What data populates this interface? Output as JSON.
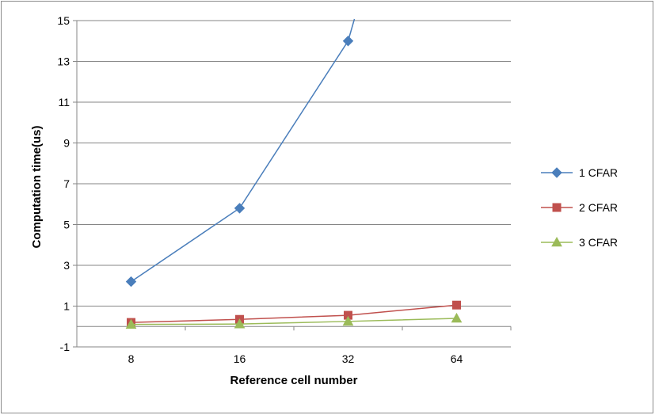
{
  "chart_data": {
    "type": "line",
    "categories": [
      "8",
      "16",
      "32",
      "64"
    ],
    "series": [
      {
        "name": "1 CFAR",
        "values": [
          2.2,
          5.8,
          14.0,
          null
        ],
        "color": "#4a7ebb",
        "marker": "diamond"
      },
      {
        "name": "2 CFAR",
        "values": [
          0.2,
          0.35,
          0.55,
          1.05
        ],
        "color": "#c0504d",
        "marker": "square"
      },
      {
        "name": "3 CFAR",
        "values": [
          0.1,
          0.12,
          0.25,
          0.4
        ],
        "color": "#9bbb59",
        "marker": "triangle"
      }
    ],
    "xlabel": "Reference cell number",
    "ylabel": "Computation time(us)",
    "ylim": [
      -1,
      15
    ],
    "yticks": [
      -1,
      1,
      3,
      5,
      7,
      9,
      11,
      13,
      15
    ],
    "grid": true,
    "legend_position": "right"
  }
}
